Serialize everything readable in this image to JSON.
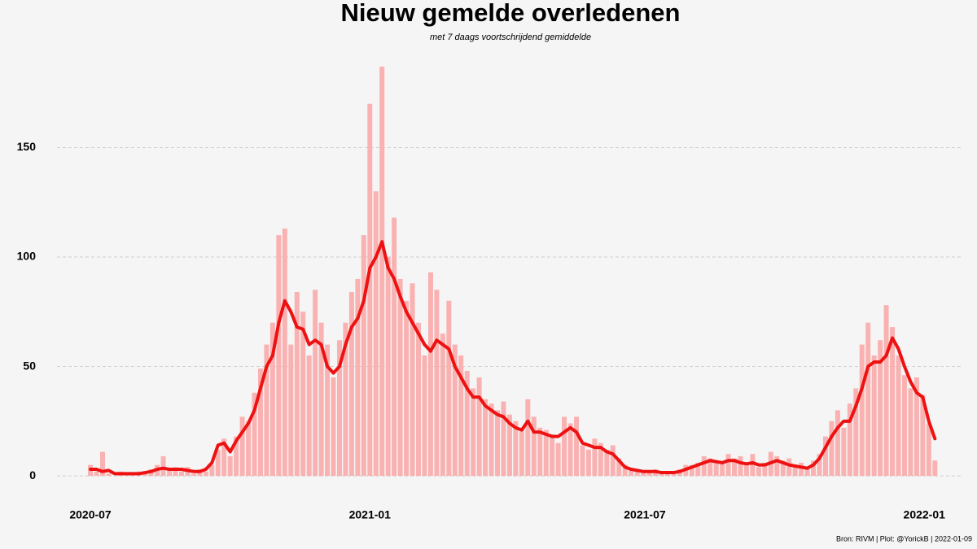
{
  "chart_data": {
    "type": "bar",
    "title": "Nieuw gemelde overledenen",
    "subtitle": "met 7 daags voortschrijdend gemiddelde",
    "caption": "Bron: RIVM | Plot: @YorickB |  2022-01-09",
    "x": [
      "2020-07-01",
      "2020-07-05",
      "2020-07-09",
      "2020-07-13",
      "2020-07-17",
      "2020-07-21",
      "2020-07-25",
      "2020-07-29",
      "2020-08-02",
      "2020-08-06",
      "2020-08-10",
      "2020-08-14",
      "2020-08-18",
      "2020-08-22",
      "2020-08-26",
      "2020-08-30",
      "2020-09-03",
      "2020-09-07",
      "2020-09-11",
      "2020-09-15",
      "2020-09-19",
      "2020-09-23",
      "2020-09-27",
      "2020-10-01",
      "2020-10-05",
      "2020-10-09",
      "2020-10-13",
      "2020-10-17",
      "2020-10-21",
      "2020-10-25",
      "2020-10-29",
      "2020-11-02",
      "2020-11-06",
      "2020-11-10",
      "2020-11-14",
      "2020-11-18",
      "2020-11-22",
      "2020-11-26",
      "2020-11-30",
      "2020-12-04",
      "2020-12-08",
      "2020-12-12",
      "2020-12-16",
      "2020-12-20",
      "2020-12-24",
      "2020-12-28",
      "2021-01-01",
      "2021-01-05",
      "2021-01-09",
      "2021-01-13",
      "2021-01-17",
      "2021-01-21",
      "2021-01-25",
      "2021-01-29",
      "2021-02-02",
      "2021-02-06",
      "2021-02-10",
      "2021-02-14",
      "2021-02-18",
      "2021-02-22",
      "2021-02-26",
      "2021-03-02",
      "2021-03-06",
      "2021-03-10",
      "2021-03-14",
      "2021-03-18",
      "2021-03-22",
      "2021-03-26",
      "2021-03-30",
      "2021-04-03",
      "2021-04-07",
      "2021-04-11",
      "2021-04-15",
      "2021-04-19",
      "2021-04-23",
      "2021-04-27",
      "2021-05-01",
      "2021-05-05",
      "2021-05-09",
      "2021-05-13",
      "2021-05-17",
      "2021-05-21",
      "2021-05-25",
      "2021-05-29",
      "2021-06-02",
      "2021-06-06",
      "2021-06-10",
      "2021-06-14",
      "2021-06-18",
      "2021-06-22",
      "2021-06-26",
      "2021-06-30",
      "2021-07-04",
      "2021-07-08",
      "2021-07-12",
      "2021-07-16",
      "2021-07-20",
      "2021-07-24",
      "2021-07-28",
      "2021-08-01",
      "2021-08-05",
      "2021-08-09",
      "2021-08-13",
      "2021-08-17",
      "2021-08-21",
      "2021-08-25",
      "2021-08-29",
      "2021-09-02",
      "2021-09-06",
      "2021-09-10",
      "2021-09-14",
      "2021-09-18",
      "2021-09-22",
      "2021-09-26",
      "2021-09-30",
      "2021-10-04",
      "2021-10-08",
      "2021-10-12",
      "2021-10-16",
      "2021-10-20",
      "2021-10-24",
      "2021-10-28",
      "2021-11-01",
      "2021-11-05",
      "2021-11-09",
      "2021-11-13",
      "2021-11-17",
      "2021-11-21",
      "2021-11-25",
      "2021-11-29",
      "2021-12-03",
      "2021-12-07",
      "2021-12-11",
      "2021-12-15",
      "2021-12-19",
      "2021-12-23",
      "2021-12-27",
      "2021-12-31",
      "2022-01-04",
      "2022-01-08"
    ],
    "series": [
      {
        "type": "bar",
        "color": "#f9b1b1",
        "values": [
          5,
          2,
          11,
          1,
          0,
          2,
          1,
          1,
          2,
          1,
          3,
          5,
          9,
          3,
          4,
          2,
          4,
          1,
          3,
          2,
          5,
          12,
          17,
          9,
          18,
          27,
          25,
          38,
          49,
          60,
          70,
          110,
          113,
          60,
          84,
          75,
          55,
          85,
          70,
          60,
          45,
          62,
          70,
          84,
          90,
          110,
          170,
          130,
          187,
          100,
          118,
          90,
          80,
          88,
          70,
          55,
          93,
          85,
          65,
          80,
          60,
          55,
          48,
          40,
          45,
          35,
          33,
          30,
          34,
          28,
          25,
          22,
          35,
          27,
          22,
          21,
          19,
          15,
          27,
          24,
          27,
          14,
          12,
          17,
          15,
          12,
          14,
          8,
          5,
          3,
          2,
          2,
          2,
          3,
          1,
          1,
          2,
          3,
          5,
          5,
          6,
          9,
          8,
          7,
          6,
          10,
          8,
          9,
          5,
          10,
          4,
          6,
          11,
          9,
          7,
          8,
          5,
          6,
          3,
          7,
          10,
          18,
          25,
          30,
          22,
          33,
          40,
          60,
          70,
          55,
          62,
          78,
          68,
          55,
          46,
          40,
          45,
          37,
          24,
          7
        ]
      },
      {
        "type": "line",
        "color": "#ee1111",
        "values": [
          3,
          3,
          2,
          2.5,
          1,
          1,
          1,
          1,
          1,
          1.5,
          2,
          3,
          3.5,
          3,
          3,
          3,
          2.5,
          2,
          2,
          3,
          6,
          14,
          15,
          11,
          16,
          20,
          24,
          30,
          40,
          50,
          55,
          70,
          80,
          75,
          68,
          67,
          60,
          62,
          60,
          50,
          47,
          50,
          60,
          68,
          72,
          80,
          95,
          100,
          107,
          95,
          90,
          82,
          75,
          70,
          65,
          60,
          57,
          62,
          60,
          58,
          50,
          45,
          40,
          36,
          36,
          32,
          30,
          28,
          27,
          24,
          22,
          21,
          25,
          20,
          20,
          19,
          18,
          18,
          20,
          22,
          20,
          15,
          14,
          13,
          13,
          11,
          10,
          7,
          4,
          3,
          2.5,
          2,
          2,
          2,
          1.5,
          1.5,
          1.5,
          2,
          3,
          4,
          5,
          6,
          7,
          6.5,
          6,
          7,
          7,
          6,
          5.5,
          6,
          5,
          5,
          6,
          7,
          6,
          5,
          4.5,
          4,
          3.5,
          5,
          8,
          13,
          18,
          22,
          25,
          25,
          32,
          40,
          50,
          52,
          52,
          55,
          63,
          58,
          50,
          43,
          38,
          36,
          25,
          17
        ]
      }
    ],
    "xlim": [
      "2020-06-09",
      "2022-01-25"
    ],
    "xticks": [
      {
        "value": "2020-07-01",
        "label": "2020-07"
      },
      {
        "value": "2021-01-01",
        "label": "2021-01"
      },
      {
        "value": "2021-07-01",
        "label": "2021-07"
      },
      {
        "value": "2022-01-01",
        "label": "2022-01"
      }
    ],
    "ylim": [
      -7.4,
      197
    ],
    "yticks": [
      0,
      50,
      100,
      150
    ],
    "grid": true
  }
}
